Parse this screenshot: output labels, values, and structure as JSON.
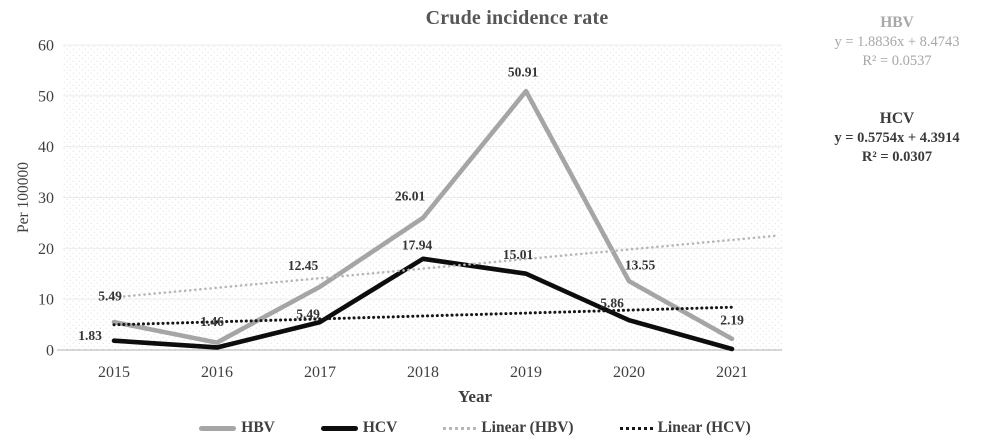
{
  "chart_data": {
    "type": "line",
    "title": "Crude incidence rate",
    "xlabel": "Year",
    "ylabel": "Per 100000",
    "ylim": [
      0,
      60
    ],
    "yticks": [
      0,
      10,
      20,
      30,
      40,
      50,
      60
    ],
    "grid": true,
    "legend_position": "bottom",
    "categories": [
      "2015",
      "2016",
      "2017",
      "2018",
      "2019",
      "2020",
      "2021"
    ],
    "series": [
      {
        "name": "HBV",
        "color": "#a5a5a5",
        "values": [
          5.49,
          1.46,
          12.45,
          26.01,
          50.91,
          13.55,
          2.19
        ],
        "labels": [
          "5.49",
          "1.46",
          "12.45",
          "26.01",
          "50.91",
          "13.55",
          "2.19"
        ]
      },
      {
        "name": "HCV",
        "color": "#0d0d0d",
        "values": [
          1.83,
          0.5,
          5.49,
          17.94,
          15.01,
          5.86,
          0.2
        ],
        "labels": [
          "1.83",
          null,
          "5.49",
          "17.94",
          "15.01",
          "5.86",
          null
        ]
      }
    ],
    "trendlines": [
      {
        "name": "Linear (HBV)",
        "slope": 1.8836,
        "intercept": 8.4743,
        "color": "#b7b7b7"
      },
      {
        "name": "Linear (HCV)",
        "slope": 0.5754,
        "intercept": 4.3914,
        "color": "#161616"
      }
    ],
    "legend": [
      {
        "label": "HBV",
        "style": "solid",
        "color": "#a5a5a5"
      },
      {
        "label": "HCV",
        "style": "solid",
        "color": "#0d0d0d"
      },
      {
        "label": "Linear (HBV)",
        "style": "dotted",
        "color": "#b7b7b7"
      },
      {
        "label": "Linear (HCV)",
        "style": "dotted",
        "color": "#161616"
      }
    ]
  },
  "annotations": {
    "hbv": {
      "title": "HBV",
      "equation": "y = 1.8836x + 8.4743",
      "r2": "R² = 0.0537",
      "color": "#a7a7a7"
    },
    "hcv": {
      "title": "HCV",
      "equation": "y = 0.5754x + 4.3914",
      "r2": "R² = 0.0307",
      "color": "#3a3a3a"
    }
  }
}
